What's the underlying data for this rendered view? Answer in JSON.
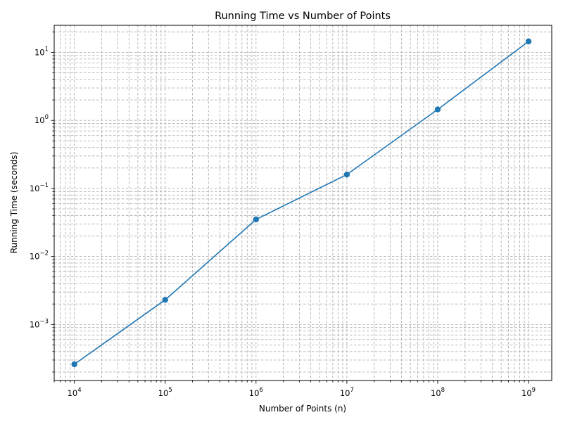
{
  "chart_data": {
    "type": "line",
    "title": "Running Time vs Number of Points",
    "xlabel": "Number of Points (n)",
    "ylabel": "Running Time (seconds)",
    "xscale": "log",
    "yscale": "log",
    "xlim": [
      6000,
      1800000000
    ],
    "ylim": [
      0.00015,
      25
    ],
    "grid": true,
    "grid_which": "both",
    "grid_style": "dashed",
    "x_tick_labels": [
      {
        "value": 10000,
        "base": "10",
        "exp": "4"
      },
      {
        "value": 100000,
        "base": "10",
        "exp": "5"
      },
      {
        "value": 1000000,
        "base": "10",
        "exp": "6"
      },
      {
        "value": 10000000,
        "base": "10",
        "exp": "7"
      },
      {
        "value": 100000000,
        "base": "10",
        "exp": "8"
      },
      {
        "value": 1000000000,
        "base": "10",
        "exp": "9"
      }
    ],
    "y_tick_labels": [
      {
        "value": 0.001,
        "base": "10",
        "exp": "−3"
      },
      {
        "value": 0.01,
        "base": "10",
        "exp": "−2"
      },
      {
        "value": 0.1,
        "base": "10",
        "exp": "−1"
      },
      {
        "value": 1,
        "base": "10",
        "exp": "0"
      },
      {
        "value": 10,
        "base": "10",
        "exp": "1"
      }
    ],
    "series": [
      {
        "name": "running time",
        "color": "#1f77b4",
        "marker": "circle",
        "x": [
          10000,
          100000,
          1000000,
          10000000,
          100000000,
          1000000000
        ],
        "values": [
          0.00026,
          0.0023,
          0.035,
          0.16,
          1.45,
          14.5
        ]
      }
    ]
  }
}
